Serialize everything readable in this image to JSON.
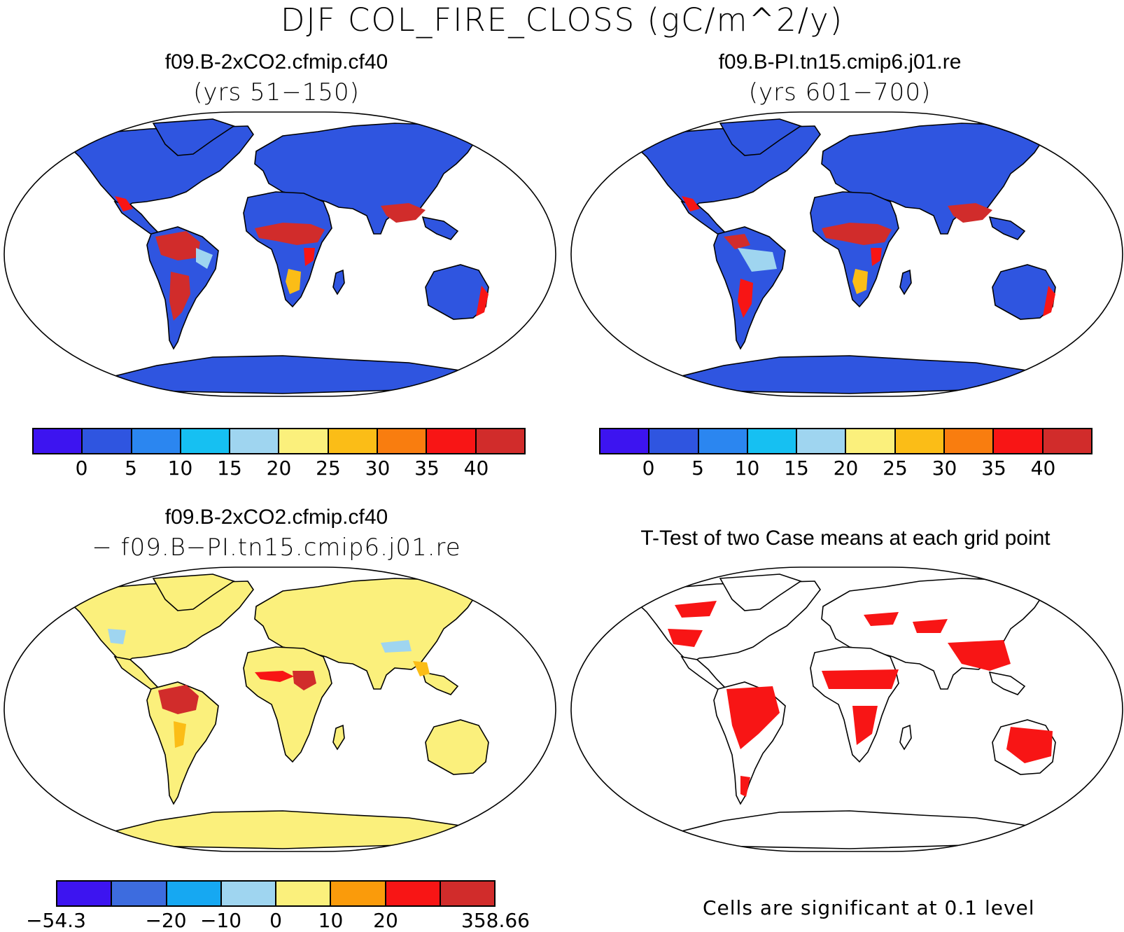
{
  "title": "DJF COL_FIRE_CLOSS (gC/m^2/y)",
  "panels": {
    "top_left": {
      "title": "f09.B-2xCO2.cfmip.cf40",
      "subtitle": "(yrs 51−150)"
    },
    "top_right": {
      "title": "f09.B-PI.tn15.cmip6.j01.re",
      "subtitle": "(yrs 601−700)"
    },
    "bottom_left": {
      "title": "f09.B-2xCO2.cfmip.cf40",
      "subtitle": "− f09.B−PI.tn15.cmip6.j01.re"
    },
    "bottom_right": {
      "title": "T-Test of two Case means at each grid point",
      "note": "Cells are significant at 0.1 level"
    }
  },
  "colorbar_main": {
    "colors": [
      "#3d14f0",
      "#2f55e0",
      "#2b86f0",
      "#16c0f2",
      "#9fd5f0",
      "#fbf07c",
      "#fbbd17",
      "#f97d0f",
      "#f81515",
      "#d12c2b"
    ],
    "labels": [
      "0",
      "5",
      "10",
      "15",
      "20",
      "25",
      "30",
      "35",
      "40"
    ]
  },
  "colorbar_diff": {
    "colors": [
      "#3d14f0",
      "#3d6cdf",
      "#16a8f2",
      "#9fd5f0",
      "#fbf07c",
      "#fa9b0b",
      "#f81515",
      "#d12c2b"
    ],
    "labels": [
      "−54.3",
      "−20",
      "−10",
      "0",
      "10",
      "20",
      "358.66"
    ]
  },
  "map_colors": {
    "land_main": "#2f55e0",
    "land_diff": "#fbf07c",
    "land_ttest": "#ffffff",
    "high": "#d12c2b",
    "mid": "#f81515",
    "warm": "#fbbd17",
    "light": "#9fd5f0",
    "sig": "#f81515",
    "outline": "#000000"
  }
}
